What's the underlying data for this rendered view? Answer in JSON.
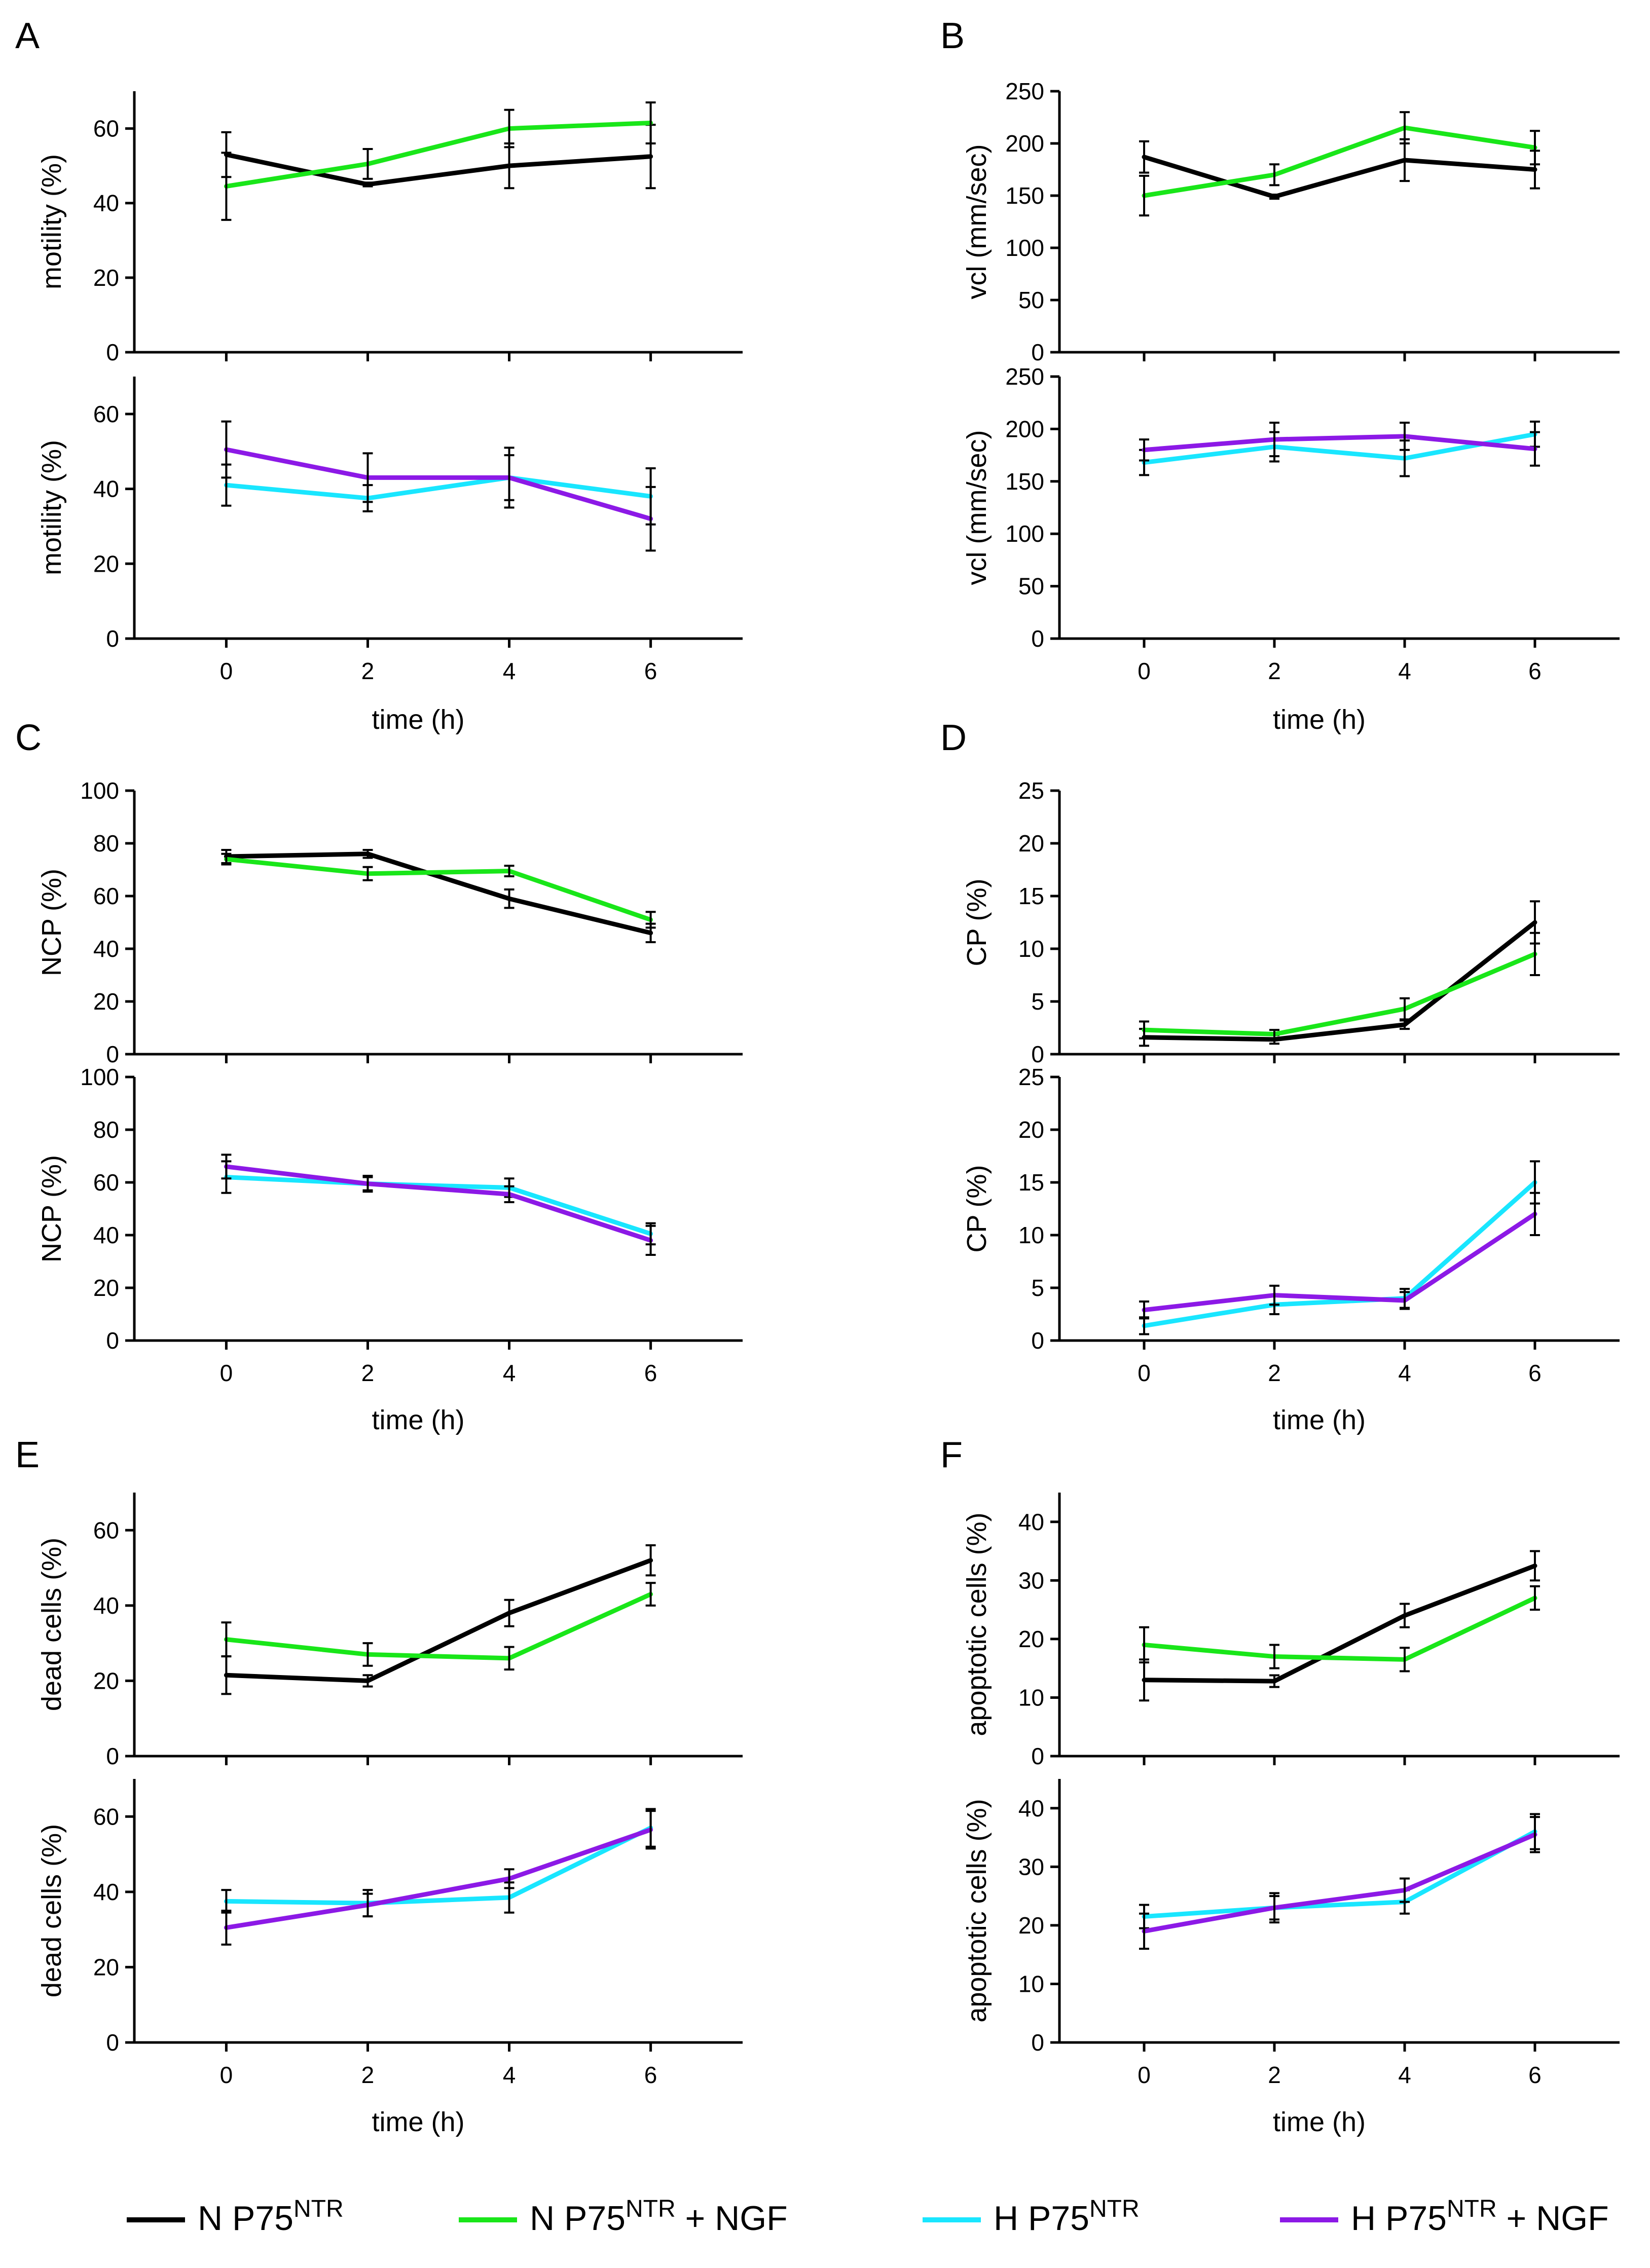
{
  "colors": {
    "N P75NTR": "#000000",
    "N P75NTR + NGF": "#19e619",
    "H P75NTR": "#19e6ff",
    "H P75NTR + NGF": "#8c19e6",
    "axis": "#000000",
    "errorbar": "#000000"
  },
  "legend": [
    {
      "name": "N P75NTR",
      "pre": "N P75",
      "sup": "NTR",
      "post": ""
    },
    {
      "name": "N P75NTR + NGF",
      "pre": "N P75",
      "sup": "NTR",
      "post": " + NGF"
    },
    {
      "name": "H P75NTR",
      "pre": "H P75",
      "sup": "NTR",
      "post": ""
    },
    {
      "name": "H P75NTR + NGF",
      "pre": "H P75",
      "sup": "NTR",
      "post": " + NGF"
    }
  ],
  "chart_data": [
    {
      "panel": "A",
      "type": "line",
      "xlabel": "time (h)",
      "x": [
        0,
        2,
        4,
        6
      ],
      "xlim": [
        -1.3,
        7.3
      ],
      "xticks": [
        0,
        2,
        4,
        6
      ],
      "subplots": [
        {
          "ylabel": "motility (%)",
          "ylim": [
            0,
            70
          ],
          "yticks": [
            0,
            20,
            40,
            60
          ],
          "series": [
            {
              "name": "N P75NTR",
              "values": [
                53,
                45,
                50,
                52.5
              ],
              "err": [
                6,
                0.5,
                6,
                8.5
              ]
            },
            {
              "name": "N P75NTR + NGF",
              "values": [
                44.5,
                50.5,
                60,
                61.5
              ],
              "err": [
                9,
                4,
                5,
                5.5
              ]
            }
          ]
        },
        {
          "ylabel": "motility (%)",
          "ylim": [
            0,
            70
          ],
          "yticks": [
            0,
            20,
            40,
            60
          ],
          "series": [
            {
              "name": "H P75NTR",
              "values": [
                41,
                37.5,
                43,
                38
              ],
              "err": [
                5.5,
                3.5,
                8,
                7.5
              ]
            },
            {
              "name": "H P75NTR + NGF",
              "values": [
                50.5,
                43,
                43,
                32
              ],
              "err": [
                7.5,
                6.5,
                6,
                8.5
              ]
            }
          ]
        }
      ]
    },
    {
      "panel": "B",
      "type": "line",
      "xlabel": "time (h)",
      "x": [
        0,
        2,
        4,
        6
      ],
      "xlim": [
        -1.3,
        7.3
      ],
      "xticks": [
        0,
        2,
        4,
        6
      ],
      "subplots": [
        {
          "ylabel": "vcl (mm/sec)",
          "ylim": [
            0,
            250
          ],
          "yticks": [
            0,
            50,
            100,
            150,
            200,
            250
          ],
          "series": [
            {
              "name": "N P75NTR",
              "values": [
                187,
                149,
                184,
                175
              ],
              "err": [
                15,
                2,
                20,
                18
              ]
            },
            {
              "name": "N P75NTR + NGF",
              "values": [
                150,
                170,
                215,
                196
              ],
              "err": [
                19,
                10,
                15,
                16
              ]
            }
          ]
        },
        {
          "ylabel": "vcl (mm/sec)",
          "ylim": [
            0,
            250
          ],
          "yticks": [
            0,
            50,
            100,
            150,
            200,
            250
          ],
          "series": [
            {
              "name": "H P75NTR",
              "values": [
                168,
                183,
                172,
                195
              ],
              "err": [
                12,
                14,
                17,
                12
              ]
            },
            {
              "name": "H P75NTR + NGF",
              "values": [
                180,
                190,
                193,
                181
              ],
              "err": [
                10,
                16,
                13,
                16
              ]
            }
          ]
        }
      ]
    },
    {
      "panel": "C",
      "type": "line",
      "xlabel": "time (h)",
      "x": [
        0,
        2,
        4,
        6
      ],
      "xlim": [
        -1.3,
        7.3
      ],
      "xticks": [
        0,
        2,
        4,
        6
      ],
      "subplots": [
        {
          "ylabel": "NCP (%)",
          "ylim": [
            0,
            100
          ],
          "yticks": [
            0,
            20,
            40,
            60,
            80,
            100
          ],
          "series": [
            {
              "name": "N P75NTR",
              "values": [
                75,
                76,
                59,
                46
              ],
              "err": [
                2.5,
                1.5,
                3.5,
                3.5
              ]
            },
            {
              "name": "N P75NTR + NGF",
              "values": [
                74,
                68.5,
                69.5,
                51
              ],
              "err": [
                2,
                2.5,
                2,
                3
              ]
            }
          ]
        },
        {
          "ylabel": "NCP (%)",
          "ylim": [
            0,
            100
          ],
          "yticks": [
            0,
            20,
            40,
            60,
            80,
            100
          ],
          "series": [
            {
              "name": "H P75NTR",
              "values": [
                62,
                59.5,
                58,
                40.5
              ],
              "err": [
                6,
                3,
                3.5,
                4
              ]
            },
            {
              "name": "H P75NTR + NGF",
              "values": [
                66,
                59.5,
                55.5,
                38
              ],
              "err": [
                4.5,
                2.5,
                3,
                5.5
              ]
            }
          ]
        }
      ]
    },
    {
      "panel": "D",
      "type": "line",
      "xlabel": "time (h)",
      "x": [
        0,
        2,
        4,
        6
      ],
      "xlim": [
        -1.3,
        7.3
      ],
      "xticks": [
        0,
        2,
        4,
        6
      ],
      "subplots": [
        {
          "ylabel": "CP (%)",
          "ylim": [
            0,
            25
          ],
          "yticks": [
            0,
            5,
            10,
            15,
            20,
            25
          ],
          "series": [
            {
              "name": "N P75NTR",
              "values": [
                1.6,
                1.4,
                2.8,
                12.5
              ],
              "err": [
                0.8,
                0.4,
                0.4,
                2
              ]
            },
            {
              "name": "N P75NTR + NGF",
              "values": [
                2.3,
                1.9,
                4.3,
                9.5
              ],
              "err": [
                0.8,
                0.4,
                1,
                2
              ]
            }
          ]
        },
        {
          "ylabel": "CP (%)",
          "ylim": [
            0,
            25
          ],
          "yticks": [
            0,
            5,
            10,
            15,
            20,
            25
          ],
          "series": [
            {
              "name": "H P75NTR",
              "values": [
                1.4,
                3.4,
                4,
                15
              ],
              "err": [
                0.8,
                0.9,
                0.9,
                2
              ]
            },
            {
              "name": "H P75NTR + NGF",
              "values": [
                2.9,
                4.3,
                3.8,
                12
              ],
              "err": [
                0.8,
                0.9,
                0.8,
                2
              ]
            }
          ]
        }
      ]
    },
    {
      "panel": "E",
      "type": "line",
      "xlabel": "time (h)",
      "x": [
        0,
        2,
        4,
        6
      ],
      "xlim": [
        -1.3,
        7.3
      ],
      "xticks": [
        0,
        2,
        4,
        6
      ],
      "subplots": [
        {
          "ylabel": "dead cells (%)",
          "ylim": [
            0,
            70
          ],
          "yticks": [
            0,
            20,
            40,
            60
          ],
          "series": [
            {
              "name": "N P75NTR",
              "values": [
                21.5,
                20,
                38,
                52
              ],
              "err": [
                5,
                1.5,
                3.5,
                4
              ]
            },
            {
              "name": "N P75NTR + NGF",
              "values": [
                31,
                27,
                26,
                43
              ],
              "err": [
                4.5,
                3,
                3,
                3
              ]
            }
          ]
        },
        {
          "ylabel": "dead cells (%)",
          "ylim": [
            0,
            70
          ],
          "yticks": [
            0,
            20,
            40,
            60
          ],
          "series": [
            {
              "name": "H P75NTR",
              "values": [
                37.5,
                37,
                38.5,
                57
              ],
              "err": [
                3,
                3.5,
                4,
                5
              ]
            },
            {
              "name": "H P75NTR + NGF",
              "values": [
                30.5,
                36.5,
                43.5,
                56.5
              ],
              "err": [
                4.5,
                3,
                2.5,
                5
              ]
            }
          ]
        }
      ]
    },
    {
      "panel": "F",
      "type": "line",
      "xlabel": "time (h)",
      "x": [
        0,
        2,
        4,
        6
      ],
      "xlim": [
        -1.3,
        7.3
      ],
      "xticks": [
        0,
        2,
        4,
        6
      ],
      "subplots": [
        {
          "ylabel": "apoptotic cells (%)",
          "ylim": [
            0,
            45
          ],
          "yticks": [
            0,
            10,
            20,
            30,
            40
          ],
          "series": [
            {
              "name": "N P75NTR",
              "values": [
                13,
                12.8,
                24,
                32.5
              ],
              "err": [
                3.5,
                1,
                2,
                2.5
              ]
            },
            {
              "name": "N P75NTR + NGF",
              "values": [
                19,
                17,
                16.5,
                27
              ],
              "err": [
                3,
                2,
                2,
                2
              ]
            }
          ]
        },
        {
          "ylabel": "apoptotic cells (%)",
          "ylim": [
            0,
            45
          ],
          "yticks": [
            0,
            10,
            20,
            30,
            40
          ],
          "series": [
            {
              "name": "H P75NTR",
              "values": [
                21.5,
                23,
                24,
                36
              ],
              "err": [
                2,
                2,
                2,
                3
              ]
            },
            {
              "name": "H P75NTR + NGF",
              "values": [
                19,
                23,
                26,
                35.5
              ],
              "err": [
                3,
                2.5,
                2,
                3
              ]
            }
          ]
        }
      ]
    }
  ]
}
